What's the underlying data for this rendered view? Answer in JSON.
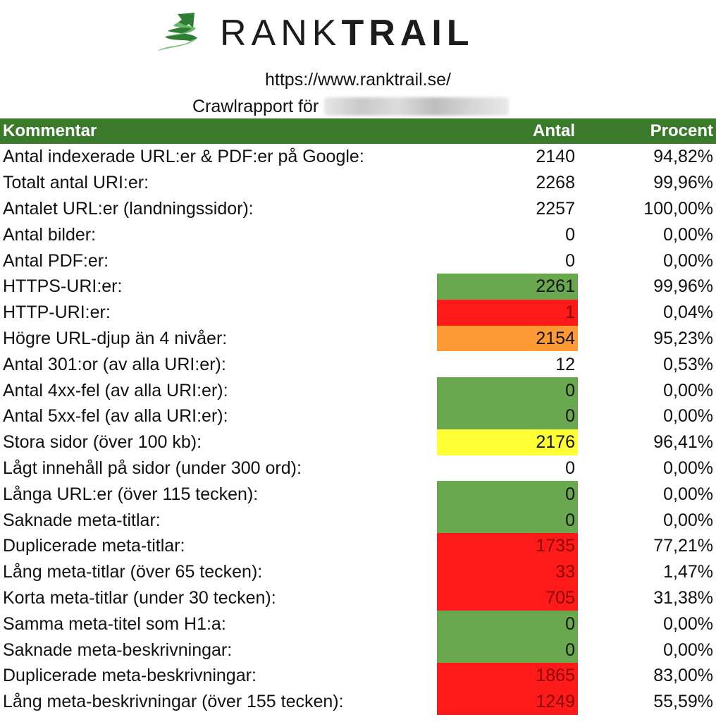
{
  "brand": {
    "name_light": "RANK",
    "name_bold": "TRAIL",
    "logo_colors": [
      "#2e7d32",
      "#4caf50",
      "#81c784"
    ]
  },
  "report": {
    "url": "https://www.ranktrail.se/",
    "crawl_label": "Crawlrapport för"
  },
  "table": {
    "headers": [
      "Kommentar",
      "Antal",
      "Procent"
    ],
    "header_color": "#3a7a2a",
    "status_colors": {
      "green": "#6aa84f",
      "red": "#ff1a1a",
      "orange": "#ff9933",
      "yellow": "#ffff33"
    },
    "rows": [
      {
        "label": "Antal indexerade URL:er & PDF:er på Google:",
        "count": "2140",
        "percent": "94,82%",
        "status": ""
      },
      {
        "label": "Totalt antal URI:er:",
        "count": "2268",
        "percent": "99,96%",
        "status": ""
      },
      {
        "label": "Antalet URL:er (landningssidor):",
        "count": "2257",
        "percent": "100,00%",
        "status": ""
      },
      {
        "label": "Antal bilder:",
        "count": "0",
        "percent": "0,00%",
        "status": ""
      },
      {
        "label": "Antal PDF:er:",
        "count": "0",
        "percent": "0,00%",
        "status": ""
      },
      {
        "label": "HTTPS-URI:er:",
        "count": "2261",
        "percent": "99,96%",
        "status": "green"
      },
      {
        "label": "HTTP-URI:er:",
        "count": "1",
        "percent": "0,04%",
        "status": "red"
      },
      {
        "label": "Högre URL-djup än 4 nivåer:",
        "count": "2154",
        "percent": "95,23%",
        "status": "orange"
      },
      {
        "label": "Antal 301:or (av alla URI:er):",
        "count": "12",
        "percent": "0,53%",
        "status": ""
      },
      {
        "label": "Antal 4xx-fel (av alla URI:er):",
        "count": "0",
        "percent": "0,00%",
        "status": "green"
      },
      {
        "label": "Antal 5xx-fel (av alla URI:er):",
        "count": "0",
        "percent": "0,00%",
        "status": "green"
      },
      {
        "label": "Stora sidor (över 100 kb):",
        "count": "2176",
        "percent": "96,41%",
        "status": "yellow"
      },
      {
        "label": "Lågt innehåll på sidor (under 300 ord):",
        "count": "0",
        "percent": "0,00%",
        "status": ""
      },
      {
        "label": "Långa URL:er (över 115 tecken):",
        "count": "0",
        "percent": "0,00%",
        "status": "green"
      },
      {
        "label": "Saknade meta-titlar:",
        "count": "0",
        "percent": "0,00%",
        "status": "green"
      },
      {
        "label": "Duplicerade meta-titlar:",
        "count": "1735",
        "percent": "77,21%",
        "status": "red"
      },
      {
        "label": "Lång meta-titlar (över 65 tecken):",
        "count": "33",
        "percent": "1,47%",
        "status": "red"
      },
      {
        "label": "Korta meta-titlar (under 30 tecken):",
        "count": "705",
        "percent": "31,38%",
        "status": "red"
      },
      {
        "label": "Samma meta-titel som H1:a:",
        "count": "0",
        "percent": "0,00%",
        "status": "green"
      },
      {
        "label": "Saknade meta-beskrivningar:",
        "count": "0",
        "percent": "0,00%",
        "status": "green"
      },
      {
        "label": "Duplicerade meta-beskrivningar:",
        "count": "1865",
        "percent": "83,00%",
        "status": "red"
      },
      {
        "label": "Lång meta-beskrivningar (över 155 tecken):",
        "count": "1249",
        "percent": "55,59%",
        "status": "red"
      }
    ]
  }
}
